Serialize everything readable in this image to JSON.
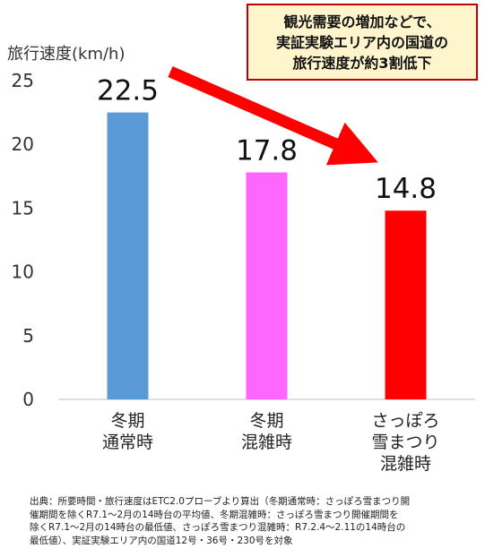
{
  "chart_data": {
    "type": "bar",
    "ylabel": "旅行速度(km/h)",
    "ylim": [
      0,
      25
    ],
    "yticks": [
      0,
      5,
      10,
      15,
      20,
      25
    ],
    "grid": false,
    "categories": [
      [
        "冬期",
        "通常時"
      ],
      [
        "冬期",
        "混雑時"
      ],
      [
        "さっぽろ",
        "雪まつり",
        "混雑時"
      ]
    ],
    "values": [
      22.5,
      17.8,
      14.8
    ],
    "value_labels": [
      "22.5",
      "17.8",
      "14.8"
    ],
    "colors": [
      "#5b9bd5",
      "#ff66ff",
      "#ff0000"
    ],
    "annotation": {
      "lines": [
        "観光需要の増加などで、",
        "実証実験エリア内の国道の",
        "旅行速度が約3割低下"
      ],
      "arrow_color": "#ff0000",
      "box_fill": "#fff5cc",
      "box_border": "#c00000"
    }
  },
  "source_note": [
    "出典：所要時間・旅行速度はETC2.0プローブより算出（冬期通常時：さっぽろ雪まつり開",
    "催期間を除くR7.1～2月の14時台の平均値、冬期混雑時：さっぽろ雪まつり開催期間を",
    "除くR7.1～2月の14時台の最低値、さっぽろ雪まつり混雑時：R7.2.4～2.11の14時台の",
    "最低値）、実証実験エリア内の国道12号・36号・230号を対象"
  ]
}
